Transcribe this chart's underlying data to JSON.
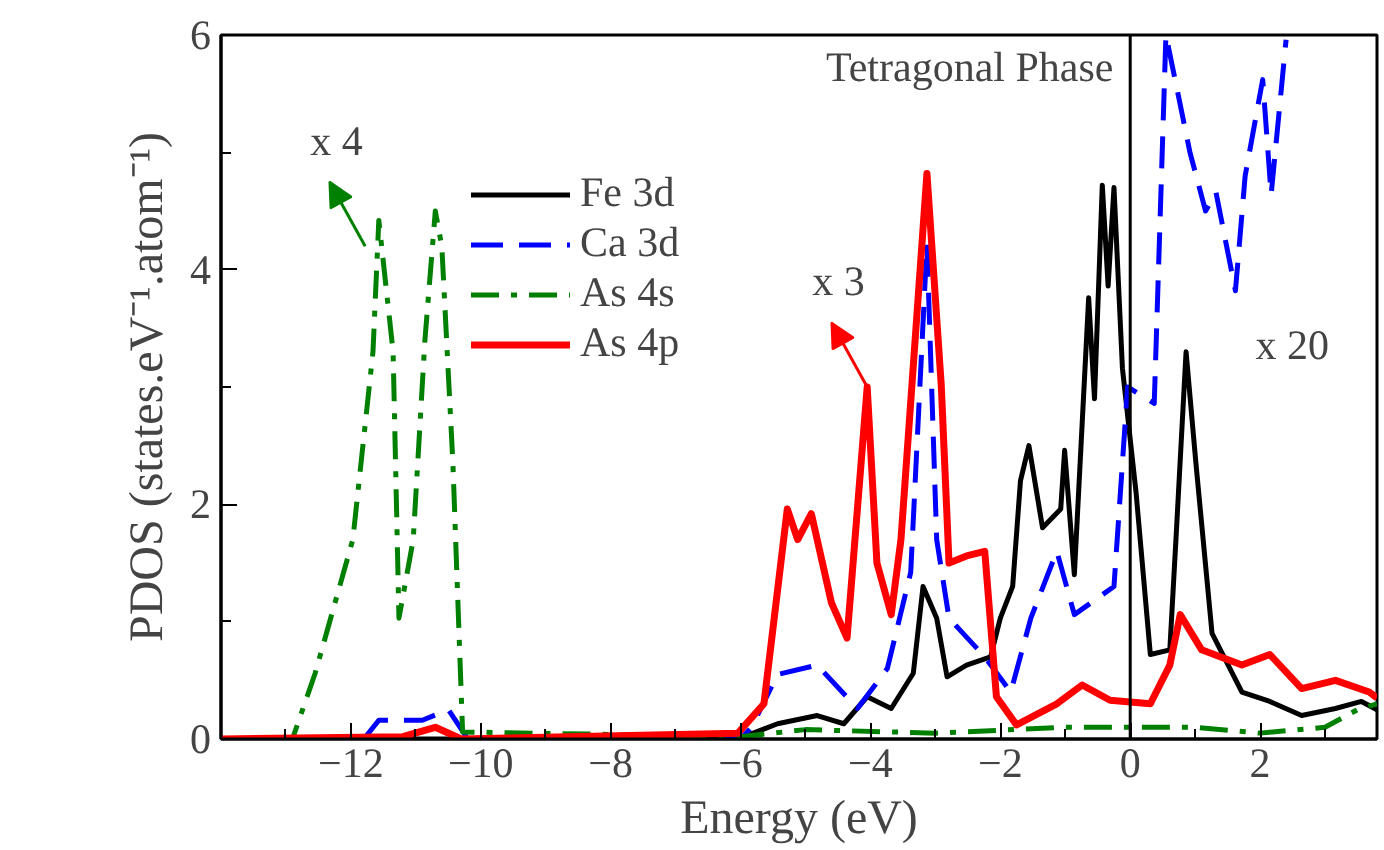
{
  "chart_data": {
    "type": "line",
    "xlabel": "Energy (eV)",
    "ylabel": "PDOS (states.eV⁻¹.atom⁻¹)",
    "xlim": [
      -14,
      3.8
    ],
    "ylim": [
      0,
      6
    ],
    "xticks": [
      {
        "value": -13,
        "label": null
      },
      -12,
      {
        "value": -11,
        "label": null
      },
      -10,
      {
        "value": -9,
        "label": null
      },
      -8,
      {
        "value": -7,
        "label": null
      },
      -6,
      {
        "value": -5,
        "label": null
      },
      -4,
      {
        "value": -3,
        "label": null
      },
      -2,
      {
        "value": -1,
        "label": null
      },
      0,
      {
        "value": 1,
        "label": null
      },
      2,
      {
        "value": 3,
        "label": null
      }
    ],
    "yticks": [
      0,
      {
        "value": 1,
        "label": null
      },
      2,
      {
        "value": 3,
        "label": null
      },
      4,
      {
        "value": 5,
        "label": null
      },
      6
    ],
    "grid": false,
    "legend": "top left",
    "series": [
      {
        "name": "Fe 3d",
        "color": "#000000",
        "line_style": "solid",
        "x": [
          -14,
          -6.04,
          -5.43,
          -4.82,
          -4.41,
          -4.05,
          -3.68,
          -3.34,
          -3.19,
          -2.98,
          -2.82,
          -2.52,
          -2.15,
          -2.0,
          -1.81,
          -1.69,
          -1.56,
          -1.35,
          -1.07,
          -1.01,
          -0.86,
          -0.64,
          -0.55,
          -0.43,
          -0.34,
          -0.25,
          -0.12,
          0.09,
          0.31,
          0.61,
          0.71,
          0.86,
          1.01,
          1.26,
          1.72,
          2.15,
          2.64,
          3.16,
          3.56,
          3.8
        ],
        "values": [
          0,
          0,
          0.13,
          0.2,
          0.13,
          0.36,
          0.26,
          0.56,
          1.3,
          1.03,
          0.53,
          0.63,
          0.7,
          1.03,
          1.3,
          2.2,
          2.5,
          1.8,
          1.96,
          2.46,
          1.4,
          3.76,
          2.9,
          4.72,
          3.86,
          4.7,
          3.16,
          2.1,
          0.72,
          0.76,
          1.76,
          3.3,
          2.36,
          0.9,
          0.4,
          0.32,
          0.2,
          0.26,
          0.32,
          0.25
        ]
      },
      {
        "name": "Ca 3d",
        "color": "#0000ff",
        "line_style": "dashed",
        "x": [
          -14,
          -11.8,
          -11.57,
          -11.26,
          -10.9,
          -10.5,
          -10.2,
          -6.0,
          -5.83,
          -5.43,
          -4.82,
          -4.2,
          -3.74,
          -3.38,
          -3.13,
          -2.98,
          -2.79,
          -2.24,
          -1.84,
          -1.53,
          -1.13,
          -0.86,
          -0.25,
          -0.04,
          0.37,
          0.55,
          0.92,
          1.16,
          1.32,
          1.62,
          1.77,
          2.04,
          2.17,
          2.4
        ],
        "values": [
          0,
          0,
          0.16,
          0.16,
          0.16,
          0.25,
          0,
          0,
          0.1,
          0.55,
          0.63,
          0.26,
          0.6,
          1.42,
          4.22,
          1.7,
          1.03,
          0.7,
          0.4,
          1.03,
          1.6,
          1.06,
          1.3,
          3.0,
          2.86,
          6.0,
          5.0,
          4.5,
          4.66,
          3.82,
          4.8,
          5.62,
          4.64,
          5.96
        ]
      },
      {
        "name": "As 4s",
        "color": "#008000",
        "line_style": "dashdot",
        "x": [
          -14,
          -12.9,
          -12.55,
          -11.97,
          -11.66,
          -11.57,
          -11.35,
          -11.26,
          -11.04,
          -10.86,
          -10.7,
          -10.6,
          -10.43,
          -10.28,
          -6.0,
          -5.0,
          -3.0,
          -1.0,
          0,
          1.0,
          2.0,
          3.0,
          3.5,
          3.8
        ],
        "values": [
          0,
          0,
          0.56,
          1.7,
          3.3,
          4.42,
          3.3,
          1.03,
          1.7,
          3.4,
          4.5,
          4.2,
          2.36,
          0.06,
          0.02,
          0.08,
          0.05,
          0.1,
          0.1,
          0.1,
          0.05,
          0.1,
          0.25,
          0.3
        ]
      },
      {
        "name": "As 4p",
        "color": "#ff0000",
        "line_style": "solid",
        "x": [
          -14,
          -11.2,
          -10.7,
          -10.3,
          -6.04,
          -5.64,
          -5.28,
          -5.12,
          -4.91,
          -4.6,
          -4.36,
          -4.05,
          -3.9,
          -3.68,
          -3.53,
          -3.13,
          -2.91,
          -2.79,
          -2.52,
          -2.24,
          -2.06,
          -1.75,
          -1.13,
          -0.74,
          -0.31,
          0.31,
          0.61,
          0.77,
          1.1,
          1.72,
          2.15,
          2.64,
          3.16,
          3.68,
          3.8
        ],
        "values": [
          0,
          0.02,
          0.1,
          0,
          0.05,
          0.3,
          1.96,
          1.7,
          1.92,
          1.16,
          0.86,
          3.0,
          1.5,
          1.06,
          1.7,
          4.82,
          3.02,
          1.5,
          1.56,
          1.6,
          0.36,
          0.12,
          0.3,
          0.46,
          0.33,
          0.3,
          0.63,
          1.06,
          0.76,
          0.63,
          0.72,
          0.43,
          0.5,
          0.4,
          0.35
        ]
      }
    ],
    "ref_lines": [
      {
        "axis": "x",
        "value": 0,
        "label": null,
        "color": "#000000"
      }
    ],
    "annotations": [
      "Tetragonal Phase",
      "x 20",
      {
        "text": "x 4",
        "x": -11.78,
        "y": 4.2
      },
      {
        "text": "x 3",
        "x": -4.05,
        "y": 3.0
      }
    ]
  }
}
